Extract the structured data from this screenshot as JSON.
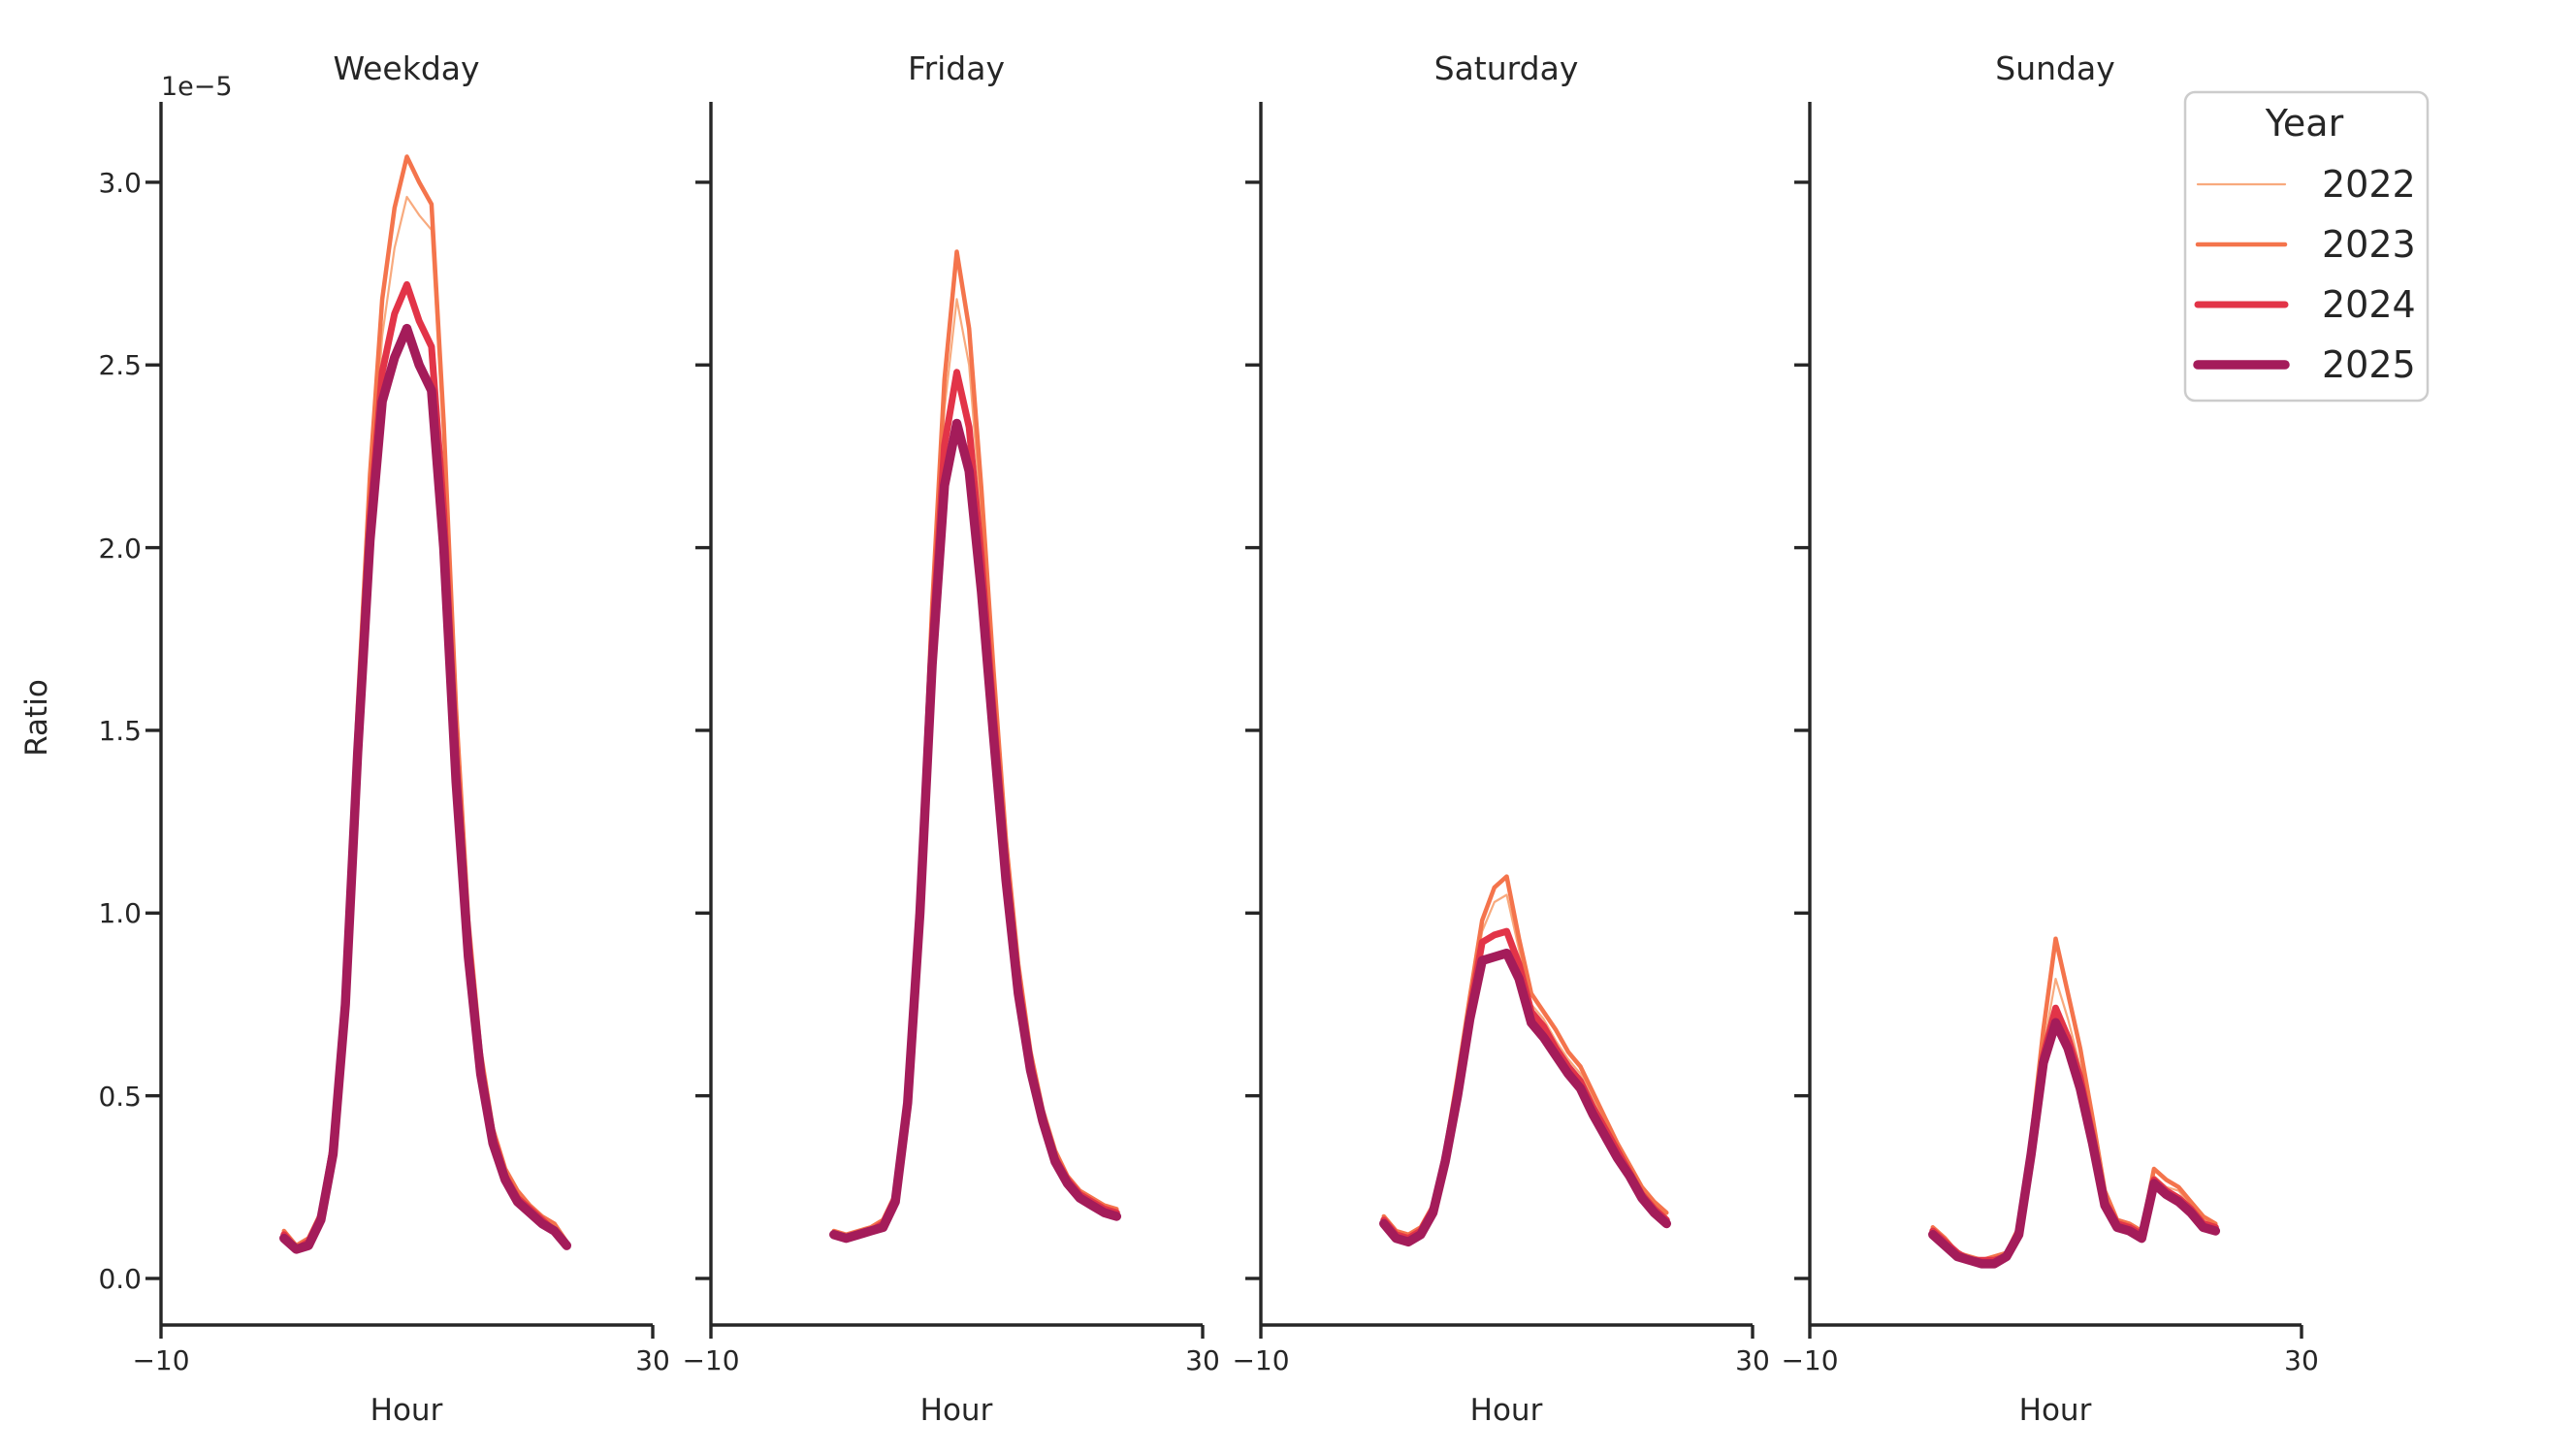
{
  "chart_data": {
    "type": "line",
    "facet_variable": "day type",
    "xlabel": "Hour",
    "ylabel": "Ratio",
    "y_offset_label": "1e−5",
    "y_unit_multiplier": "1e-5",
    "xlim": [
      -10,
      30
    ],
    "ylim": [
      0,
      3.22
    ],
    "grid": false,
    "x": [
      0,
      1,
      2,
      3,
      4,
      5,
      6,
      7,
      8,
      9,
      10,
      11,
      12,
      13,
      14,
      15,
      16,
      17,
      18,
      19,
      20,
      21,
      22,
      23
    ],
    "xticks": [
      {
        "v": -10,
        "label": "−10"
      },
      {
        "v": 30,
        "label": "30"
      }
    ],
    "yticks": [
      {
        "v": 0.0,
        "label": "0.0"
      },
      {
        "v": 0.5,
        "label": "0.5"
      },
      {
        "v": 1.0,
        "label": "1.0"
      },
      {
        "v": 1.5,
        "label": "1.5"
      },
      {
        "v": 2.0,
        "label": "2.0"
      },
      {
        "v": 2.5,
        "label": "2.5"
      },
      {
        "v": 3.0,
        "label": "3.0"
      }
    ],
    "legend": {
      "title": "Year",
      "position": "upper right",
      "entries": [
        {
          "label": "2022",
          "color": "#f8aa7e",
          "linewidth": 2.2
        },
        {
          "label": "2023",
          "color": "#f4744c",
          "linewidth": 4.5
        },
        {
          "label": "2024",
          "color": "#e23448",
          "linewidth": 7
        },
        {
          "label": "2025",
          "color": "#a41c5a",
          "linewidth": 9.5
        }
      ]
    },
    "facets": [
      {
        "title": "Weekday",
        "series": [
          {
            "name": "2022",
            "values": [
              0.12,
              0.08,
              0.1,
              0.17,
              0.36,
              0.78,
              1.5,
              2.12,
              2.58,
              2.82,
              2.96,
              2.91,
              2.87,
              2.28,
              1.52,
              0.96,
              0.6,
              0.4,
              0.29,
              0.23,
              0.19,
              0.16,
              0.14,
              0.1
            ]
          },
          {
            "name": "2023",
            "values": [
              0.13,
              0.09,
              0.11,
              0.18,
              0.38,
              0.82,
              1.56,
              2.2,
              2.68,
              2.93,
              3.07,
              3.0,
              2.94,
              2.34,
              1.56,
              0.98,
              0.62,
              0.41,
              0.3,
              0.24,
              0.2,
              0.17,
              0.15,
              0.1
            ]
          },
          {
            "name": "2024",
            "values": [
              0.12,
              0.08,
              0.1,
              0.17,
              0.36,
              0.78,
              1.48,
              2.08,
              2.48,
              2.64,
              2.72,
              2.62,
              2.55,
              2.1,
              1.42,
              0.92,
              0.58,
              0.39,
              0.28,
              0.22,
              0.19,
              0.16,
              0.13,
              0.09
            ]
          },
          {
            "name": "2025",
            "values": [
              0.11,
              0.08,
              0.09,
              0.16,
              0.34,
              0.75,
              1.44,
              2.02,
              2.4,
              2.52,
              2.6,
              2.5,
              2.43,
              2.0,
              1.36,
              0.88,
              0.56,
              0.37,
              0.27,
              0.21,
              0.18,
              0.15,
              0.13,
              0.09
            ]
          }
        ]
      },
      {
        "title": "Friday",
        "series": [
          {
            "name": "2022",
            "values": [
              0.12,
              0.11,
              0.12,
              0.13,
              0.15,
              0.22,
              0.5,
              1.05,
              1.78,
              2.38,
              2.68,
              2.5,
              2.08,
              1.6,
              1.16,
              0.83,
              0.6,
              0.45,
              0.34,
              0.27,
              0.23,
              0.21,
              0.19,
              0.18
            ]
          },
          {
            "name": "2023",
            "values": [
              0.13,
              0.12,
              0.13,
              0.14,
              0.16,
              0.23,
              0.52,
              1.08,
              1.84,
              2.46,
              2.81,
              2.6,
              2.16,
              1.66,
              1.2,
              0.86,
              0.62,
              0.46,
              0.35,
              0.28,
              0.24,
              0.22,
              0.2,
              0.19
            ]
          },
          {
            "name": "2024",
            "values": [
              0.12,
              0.11,
              0.12,
              0.13,
              0.15,
              0.22,
              0.5,
              1.04,
              1.74,
              2.28,
              2.48,
              2.33,
              1.97,
              1.54,
              1.13,
              0.81,
              0.59,
              0.44,
              0.33,
              0.27,
              0.23,
              0.21,
              0.19,
              0.18
            ]
          },
          {
            "name": "2025",
            "values": [
              0.12,
              0.11,
              0.12,
              0.13,
              0.14,
              0.21,
              0.48,
              1.0,
              1.68,
              2.17,
              2.34,
              2.21,
              1.88,
              1.48,
              1.09,
              0.78,
              0.57,
              0.43,
              0.32,
              0.26,
              0.22,
              0.2,
              0.18,
              0.17
            ]
          }
        ]
      },
      {
        "title": "Saturday",
        "series": [
          {
            "name": "2022",
            "values": [
              0.16,
              0.12,
              0.11,
              0.13,
              0.19,
              0.33,
              0.53,
              0.74,
              0.95,
              1.03,
              1.05,
              0.9,
              0.75,
              0.71,
              0.65,
              0.6,
              0.56,
              0.49,
              0.42,
              0.36,
              0.3,
              0.24,
              0.2,
              0.17
            ]
          },
          {
            "name": "2023",
            "values": [
              0.17,
              0.13,
              0.12,
              0.14,
              0.2,
              0.35,
              0.55,
              0.77,
              0.98,
              1.07,
              1.1,
              0.93,
              0.78,
              0.73,
              0.68,
              0.62,
              0.58,
              0.51,
              0.44,
              0.37,
              0.31,
              0.25,
              0.21,
              0.18
            ]
          },
          {
            "name": "2024",
            "values": [
              0.16,
              0.12,
              0.11,
              0.13,
              0.19,
              0.33,
              0.52,
              0.73,
              0.92,
              0.94,
              0.95,
              0.86,
              0.73,
              0.69,
              0.63,
              0.58,
              0.54,
              0.47,
              0.41,
              0.35,
              0.29,
              0.23,
              0.19,
              0.16
            ]
          },
          {
            "name": "2025",
            "values": [
              0.15,
              0.11,
              0.1,
              0.12,
              0.18,
              0.32,
              0.5,
              0.71,
              0.87,
              0.88,
              0.89,
              0.82,
              0.7,
              0.66,
              0.61,
              0.56,
              0.52,
              0.45,
              0.39,
              0.33,
              0.28,
              0.22,
              0.18,
              0.15
            ]
          }
        ]
      },
      {
        "title": "Sunday",
        "series": [
          {
            "name": "2022",
            "values": [
              0.13,
              0.1,
              0.07,
              0.05,
              0.05,
              0.05,
              0.06,
              0.13,
              0.36,
              0.63,
              0.82,
              0.71,
              0.58,
              0.41,
              0.22,
              0.15,
              0.14,
              0.12,
              0.28,
              0.25,
              0.24,
              0.2,
              0.16,
              0.14
            ]
          },
          {
            "name": "2023",
            "values": [
              0.14,
              0.11,
              0.07,
              0.06,
              0.05,
              0.06,
              0.07,
              0.14,
              0.38,
              0.68,
              0.93,
              0.78,
              0.63,
              0.44,
              0.24,
              0.16,
              0.15,
              0.13,
              0.3,
              0.27,
              0.25,
              0.21,
              0.17,
              0.15
            ]
          },
          {
            "name": "2024",
            "values": [
              0.13,
              0.1,
              0.07,
              0.05,
              0.05,
              0.05,
              0.06,
              0.13,
              0.35,
              0.61,
              0.74,
              0.66,
              0.55,
              0.39,
              0.21,
              0.15,
              0.14,
              0.12,
              0.27,
              0.24,
              0.22,
              0.19,
              0.15,
              0.14
            ]
          },
          {
            "name": "2025",
            "values": [
              0.12,
              0.09,
              0.06,
              0.05,
              0.04,
              0.04,
              0.06,
              0.12,
              0.34,
              0.59,
              0.7,
              0.63,
              0.52,
              0.37,
              0.2,
              0.14,
              0.13,
              0.11,
              0.26,
              0.23,
              0.21,
              0.18,
              0.14,
              0.13
            ]
          }
        ]
      }
    ]
  }
}
